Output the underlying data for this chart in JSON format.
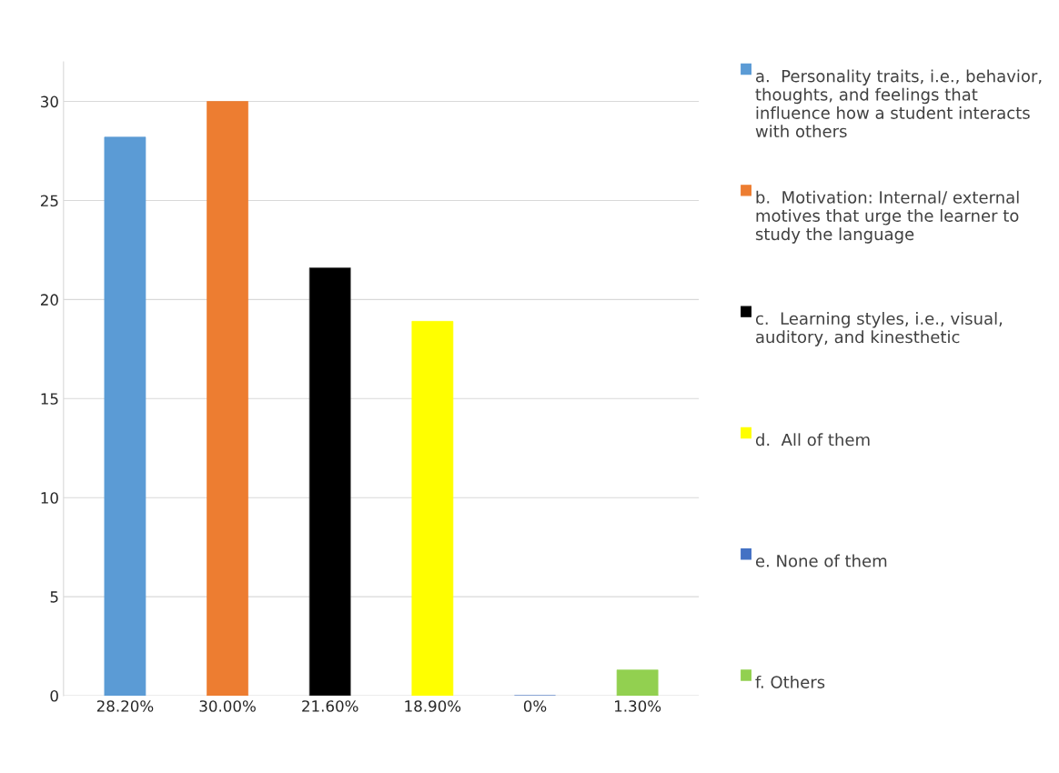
{
  "chart_data": {
    "type": "bar",
    "categories": [
      "28.20%",
      "30.00%",
      "21.60%",
      "18.90%",
      "0%",
      "1.30%"
    ],
    "series": [
      {
        "name": "a.  Personality traits, i.e., behavior, thoughts, and feelings that influence how a student interacts with others",
        "color": "#5b9bd5",
        "values": [
          28.2,
          null,
          null,
          null,
          null,
          null
        ]
      },
      {
        "name": "b.  Motivation: Internal/ external motives that urge the learner to study the language",
        "color": "#ed7d31",
        "values": [
          null,
          30,
          null,
          null,
          null,
          null
        ]
      },
      {
        "name": "c.  Learning styles, i.e., visual, auditory, and kinesthetic",
        "color": "#000000",
        "values": [
          null,
          null,
          21.6,
          null,
          null,
          null
        ]
      },
      {
        "name": "d.  All of them",
        "color": "#ffff00",
        "values": [
          null,
          null,
          null,
          18.9,
          null,
          null
        ]
      },
      {
        "name": "e. None of them",
        "color": "#4472c4",
        "values": [
          null,
          null,
          null,
          null,
          0,
          null
        ]
      },
      {
        "name": "f. Others",
        "color": "#92d050",
        "values": [
          null,
          null,
          null,
          null,
          null,
          1.3
        ]
      }
    ],
    "ylim": [
      0,
      32
    ],
    "yticks": [
      0,
      5,
      10,
      15,
      20,
      25,
      30
    ],
    "grid": "y",
    "legend": "right"
  }
}
